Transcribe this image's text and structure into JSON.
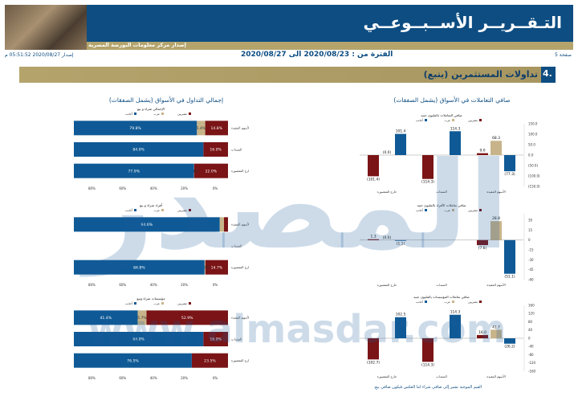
{
  "header": {
    "title": "التـقــريــر الأســبــوعــي",
    "subtitle": "إصدار مركز معلومات البورصة المصرية",
    "page_label": "صفحة 5",
    "period": "الفترة من : 2020/08/23 الى 2020/08/27",
    "issued": "إصدار 2020/08/27 05:51:52 م"
  },
  "section": {
    "number": "4.",
    "title": "تداولات المستثمرين (يتبع)"
  },
  "right_panel": {
    "title": "صافي التعاملات في الأسواق (يشمل الصفقات)"
  },
  "left_panel": {
    "title": "إجمالي التداول في الأسواق (يشمل الصفقات)"
  },
  "footnote": "القيم الموجبة تشير إلى صافي شراء اما العكس فيكون صافي بيع.",
  "watermark": {
    "logo": "المصدر",
    "url": "www.almasdar.com"
  },
  "colors": {
    "egyptians": "#7a1416",
    "arabs": "#c8b48a",
    "foreigners": "#0f5a96",
    "banner": "#0d4d82",
    "gold": "#b4a46c"
  },
  "chart_data": [
    {
      "type": "bar",
      "title": "صافي التعاملات بالمليون جنيه",
      "categories": [
        "الأسهم المقيدة",
        "السندات",
        "خارج المقصورة"
      ],
      "legend": [
        "مصريين",
        "عرب",
        "أجانب"
      ],
      "series": [
        {
          "name": "مصريين",
          "values": [
            9.0,
            -114.3,
            -101.4
          ],
          "labels": [
            "9.0",
            "(114.3)",
            "(101.4)"
          ]
        },
        {
          "name": "عرب",
          "values": [
            68.3,
            0,
            0
          ],
          "labels": [
            "68.3",
            "",
            "(0.0)"
          ]
        },
        {
          "name": "أجانب",
          "values": [
            -77.3,
            114.3,
            101.4
          ],
          "labels": [
            "(77.3)",
            "114.3",
            "101.4"
          ]
        }
      ],
      "ylim": [
        -150,
        150
      ],
      "yticks": [
        150,
        100,
        50,
        0,
        -50,
        -100,
        -150
      ],
      "ytick_labels": [
        "150.0",
        "100.0",
        "50.0",
        "0.0",
        "(50.0)",
        "(100.0)",
        "(150.0)"
      ]
    },
    {
      "type": "bar",
      "title": "صافي تعاملات الأفراد بالمليون جنيه",
      "categories": [
        "الأسهم المقيدة",
        "السندات",
        "خارج المقصورة"
      ],
      "legend": [
        "مصريين",
        "عرب",
        "أجانب"
      ],
      "series": [
        {
          "name": "مصريين",
          "values": [
            -7.6,
            0,
            1.3
          ],
          "labels": [
            "(7.6)",
            "",
            "1.3"
          ]
        },
        {
          "name": "عرب",
          "values": [
            28.8,
            0,
            0
          ],
          "labels": [
            "28.8",
            "",
            "(0.0)"
          ]
        },
        {
          "name": "أجانب",
          "values": [
            -51.1,
            0,
            -1.1
          ],
          "labels": [
            "(51.1)",
            "",
            "(1.1)"
          ]
        }
      ],
      "ylim": [
        -60,
        40
      ],
      "yticks": [
        30,
        15,
        0,
        -15,
        -30,
        -45,
        -60
      ],
      "ytick_labels": [
        "30",
        "15",
        "0",
        "-15",
        "-30",
        "-45",
        "-60"
      ]
    },
    {
      "type": "bar",
      "title": "صافي تعاملات المؤسسات بالمليون جنيه",
      "categories": [
        "الأسهم المقيدة",
        "السندات",
        "خارج المقصورة"
      ],
      "legend": [
        "مصريين",
        "عرب",
        "أجانب"
      ],
      "series": [
        {
          "name": "مصريين",
          "values": [
            16.0,
            -114.3,
            -102.7
          ],
          "labels": [
            "16.0",
            "(114.3)",
            "(102.7)"
          ]
        },
        {
          "name": "عرب",
          "values": [
            41.7,
            0,
            0
          ],
          "labels": [
            "41.7",
            "",
            ""
          ]
        },
        {
          "name": "أجانب",
          "values": [
            -26.2,
            114.3,
            102.5
          ],
          "labels": [
            "(26.2)",
            "114.3",
            "102.5"
          ]
        }
      ],
      "ylim": [
        -160,
        160
      ],
      "yticks": [
        160,
        120,
        80,
        40,
        0,
        -40,
        -80,
        -120,
        -160
      ],
      "ytick_labels": [
        "160",
        "120",
        "80",
        "40",
        "0",
        "-40",
        "-80",
        "-120",
        "-160"
      ]
    },
    {
      "type": "bar",
      "title": "الإجمالي شراء و بيع",
      "orientation": "horizontal-stacked",
      "categories": [
        "الأسهم المقيدة",
        "السندات",
        "خارج المقصورة"
      ],
      "legend": [
        "مصريين",
        "عرب",
        "أجانب"
      ],
      "series": [
        {
          "name": "مصريين",
          "values": [
            14.8,
            16.0,
            22.0
          ],
          "labels": [
            "14.8%",
            "16.0%",
            "22.0%"
          ]
        },
        {
          "name": "عرب",
          "values": [
            5.4,
            0.0,
            0.1
          ],
          "labels": [
            "5.4%",
            "",
            "0.1%"
          ]
        },
        {
          "name": "أجانب",
          "values": [
            79.8,
            84.0,
            77.9
          ],
          "labels": [
            "79.8%",
            "84.0%",
            "77.9%"
          ]
        }
      ],
      "xticks": [
        "0%",
        "20%",
        "40%",
        "60%",
        "80%"
      ]
    },
    {
      "type": "bar",
      "title": "أفراد شراء و بيع",
      "orientation": "horizontal-stacked",
      "categories": [
        "الأسهم المقيدة",
        "السندات",
        "خارج المقصورة"
      ],
      "legend": [
        "مصريين",
        "عرب",
        "أجانب"
      ],
      "series": [
        {
          "name": "مصريين",
          "values": [
            2.6,
            0,
            14.7
          ],
          "labels": [
            "",
            "",
            "14.7%"
          ]
        },
        {
          "name": "عرب",
          "values": [
            2.8,
            0,
            0.5
          ],
          "labels": [
            "",
            "",
            "0.5%"
          ]
        },
        {
          "name": "أجانب",
          "values": [
            94.6,
            0,
            84.8
          ],
          "labels": [
            "94.6%",
            "",
            "84.8%"
          ]
        }
      ],
      "xticks": [
        "0%",
        "20%",
        "40%",
        "60%",
        "80%"
      ]
    },
    {
      "type": "bar",
      "title": "مؤسسات شراء وبيع",
      "orientation": "horizontal-stacked",
      "categories": [
        "الأسهم المقيدة",
        "السندات",
        "خارج المقصورة"
      ],
      "legend": [
        "مصريين",
        "عرب",
        "أجانب"
      ],
      "series": [
        {
          "name": "مصريين",
          "values": [
            52.9,
            16.0,
            23.5
          ],
          "labels": [
            "52.9%",
            "16.0%",
            "23.5%"
          ]
        },
        {
          "name": "عرب",
          "values": [
            5.7,
            0.0,
            0.0
          ],
          "labels": [
            "5.7%",
            "",
            ""
          ]
        },
        {
          "name": "أجانب",
          "values": [
            41.4,
            84.0,
            76.5
          ],
          "labels": [
            "41.4%",
            "84.0%",
            "76.5%"
          ]
        }
      ],
      "xticks": [
        "0%",
        "20%",
        "40%",
        "60%",
        "80%"
      ]
    }
  ]
}
